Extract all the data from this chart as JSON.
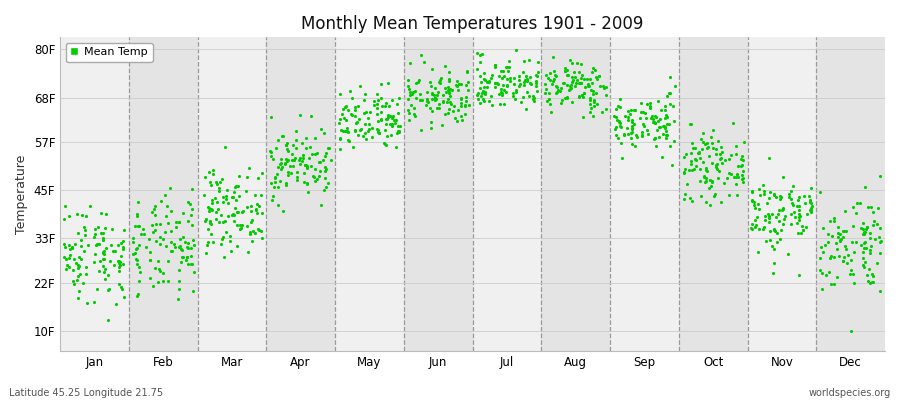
{
  "title": "Monthly Mean Temperatures 1901 - 2009",
  "ylabel": "Temperature",
  "xlabel_months": [
    "Jan",
    "Feb",
    "Mar",
    "Apr",
    "May",
    "Jun",
    "Jul",
    "Aug",
    "Sep",
    "Oct",
    "Nov",
    "Dec"
  ],
  "ytick_labels": [
    "10F",
    "22F",
    "33F",
    "45F",
    "57F",
    "68F",
    "80F"
  ],
  "ytick_values": [
    10,
    22,
    33,
    45,
    57,
    68,
    80
  ],
  "ylim": [
    5,
    83
  ],
  "dot_color": "#00cc00",
  "bg_color_light": "#f0f0f0",
  "bg_color_dark": "#e4e4e4",
  "legend_label": "Mean Temp",
  "footer_left": "Latitude 45.25 Longitude 21.75",
  "footer_right": "worldspecies.org",
  "monthly_means_C": [
    -1.5,
    -0.8,
    4.5,
    11.0,
    16.5,
    20.0,
    22.0,
    21.5,
    16.5,
    10.5,
    4.0,
    0.0
  ],
  "monthly_stds_C": [
    3.5,
    3.5,
    2.8,
    2.5,
    2.2,
    2.0,
    1.8,
    1.8,
    2.0,
    2.2,
    2.8,
    3.5
  ],
  "n_years": 109,
  "seed": 42
}
